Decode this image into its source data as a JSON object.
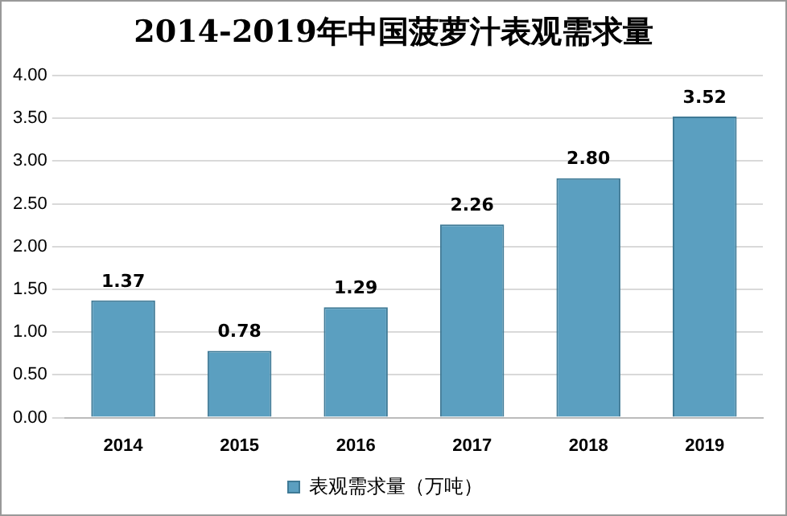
{
  "chart_data": {
    "type": "bar",
    "title": "2014-2019年中国菠萝汁表观需求量",
    "categories": [
      "2014",
      "2015",
      "2016",
      "2017",
      "2018",
      "2019"
    ],
    "series": [
      {
        "name": "表观需求量（万吨）",
        "color": "#5b9fc0",
        "values": [
          1.37,
          0.78,
          1.29,
          2.26,
          2.8,
          3.52
        ]
      }
    ],
    "value_labels": [
      "1.37",
      "0.78",
      "1.29",
      "2.26",
      "2.80",
      "3.52"
    ],
    "ylim": [
      0,
      4
    ],
    "yticks": [
      {
        "value": 0,
        "label": "0.00"
      },
      {
        "value": 0.5,
        "label": "0.50"
      },
      {
        "value": 1,
        "label": "1.00"
      },
      {
        "value": 1.5,
        "label": "1.50"
      },
      {
        "value": 2,
        "label": "2.00"
      },
      {
        "value": 2.5,
        "label": "2.50"
      },
      {
        "value": 3,
        "label": "3.00"
      },
      {
        "value": 3.5,
        "label": "3.50"
      },
      {
        "value": 4,
        "label": "4.00"
      }
    ],
    "grid": "y",
    "legend": "bottom"
  }
}
